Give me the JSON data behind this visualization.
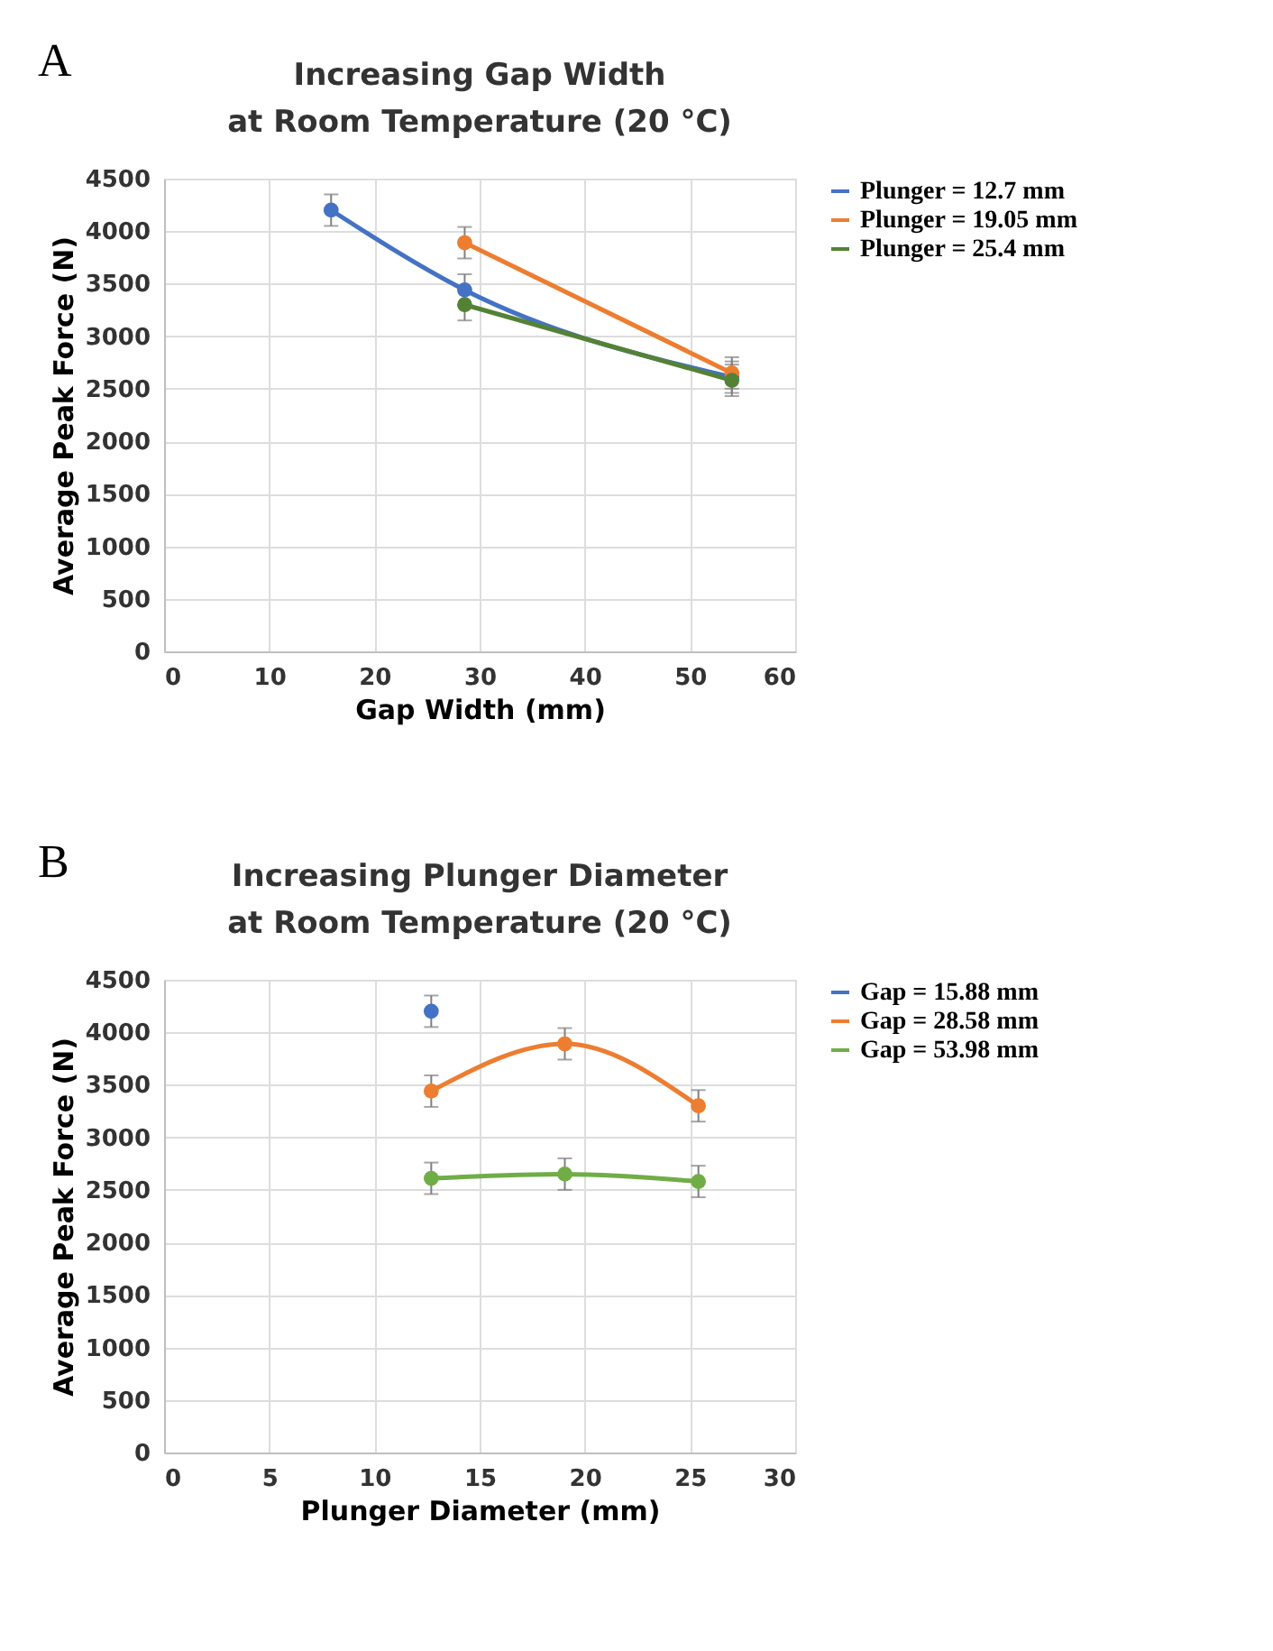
{
  "chart_data": [
    {
      "type": "line",
      "title": [
        "Increasing Gap Width",
        "at Room Temperature (20 °C)"
      ],
      "annotations": [
        "A"
      ],
      "xlabel": "Gap Width (mm)",
      "ylabel": "Average Peak Force (N)",
      "xlim": [
        0,
        60
      ],
      "xticks": [
        0,
        10,
        20,
        30,
        40,
        50,
        60
      ],
      "ylim": [
        0,
        4500
      ],
      "yticks": [
        0,
        500,
        1000,
        1500,
        2000,
        2500,
        3000,
        3500,
        4000,
        4500
      ],
      "grid": true,
      "legend": "right",
      "marker": "circle",
      "line_style": "solid",
      "series": [
        {
          "name": "Plunger = 12.7 mm",
          "color": "#4472c4",
          "x": [
            15.88,
            28.58,
            53.98
          ],
          "values": [
            4200,
            3440,
            2610
          ],
          "errors": [
            150,
            150,
            150
          ]
        },
        {
          "name": "Plunger = 19.05 mm",
          "color": "#ed7d31",
          "x": [
            28.58,
            53.98
          ],
          "values": [
            3890,
            2650
          ],
          "errors": [
            150,
            150
          ]
        },
        {
          "name": "Plunger = 25.4 mm",
          "color": "#548235",
          "x": [
            28.58,
            53.98
          ],
          "values": [
            3300,
            2580
          ],
          "errors": [
            150,
            150
          ]
        }
      ]
    },
    {
      "type": "line",
      "title": [
        "Increasing Plunger Diameter",
        "at Room Temperature (20 °C)"
      ],
      "annotations": [
        "B"
      ],
      "xlabel": "Plunger Diameter (mm)",
      "ylabel": "Average Peak Force (N)",
      "xlim": [
        0,
        30
      ],
      "xticks": [
        0,
        5,
        10,
        15,
        20,
        25,
        30
      ],
      "ylim": [
        0,
        4500
      ],
      "yticks": [
        0,
        500,
        1000,
        1500,
        2000,
        2500,
        3000,
        3500,
        4000,
        4500
      ],
      "grid": true,
      "legend": "right",
      "marker": "circle",
      "line_style": "solid",
      "series": [
        {
          "name": "Gap = 15.88 mm",
          "color": "#4472c4",
          "x": [
            12.7
          ],
          "values": [
            4200
          ],
          "errors": [
            150
          ]
        },
        {
          "name": "Gap = 28.58 mm",
          "color": "#ed7d31",
          "x": [
            12.7,
            19.05,
            25.4
          ],
          "values": [
            3440,
            3890,
            3300
          ],
          "errors": [
            150,
            150,
            150
          ]
        },
        {
          "name": "Gap = 53.98 mm",
          "color": "#70ad47",
          "x": [
            12.7,
            19.05,
            25.4
          ],
          "values": [
            2610,
            2650,
            2580
          ],
          "errors": [
            150,
            150,
            150
          ]
        }
      ]
    }
  ]
}
